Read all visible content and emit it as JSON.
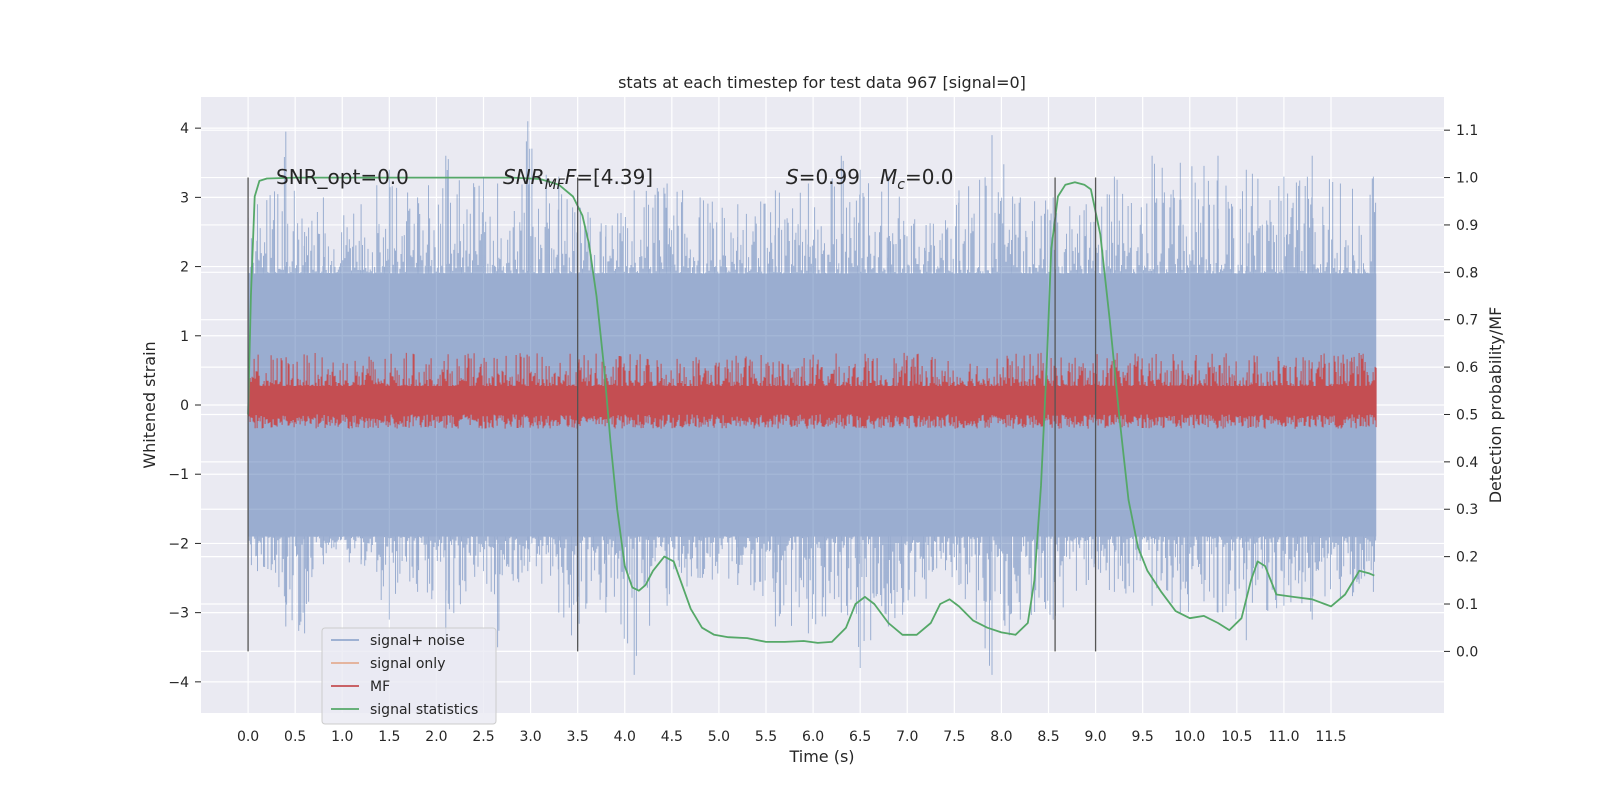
{
  "chart_data": {
    "type": "line",
    "title": "stats at each timestep for test data 967 [signal=0]",
    "xlabel": "Time (s)",
    "ylabel_left": "Whitened strain",
    "ylabel_right": "Detection probability/MF",
    "xlim": [
      -0.5,
      12.7
    ],
    "ylim_left": [
      -4.45,
      4.45
    ],
    "ylim_right": [
      -0.13,
      1.17
    ],
    "x_ticks": [
      "0.0",
      "0.5",
      "1.0",
      "1.5",
      "2.0",
      "2.5",
      "3.0",
      "3.5",
      "4.0",
      "4.5",
      "5.0",
      "5.5",
      "6.0",
      "6.5",
      "7.0",
      "7.5",
      "8.0",
      "8.5",
      "9.0",
      "9.5",
      "10.0",
      "10.5",
      "11.0",
      "11.5"
    ],
    "y_ticks_left": [
      "−4",
      "−3",
      "−2",
      "−1",
      "0",
      "1",
      "2",
      "3",
      "4"
    ],
    "y_ticks_right": [
      "0.0",
      "0.1",
      "0.2",
      "0.3",
      "0.4",
      "0.5",
      "0.6",
      "0.7",
      "0.8",
      "0.9",
      "1.0",
      "1.1"
    ],
    "grid": true,
    "legend_position": "lower-left",
    "annotations": {
      "snr_opt": "SNR_opt=0.0",
      "snr_mf_prefix": "SNR",
      "snr_mf_sub": "MF",
      "snr_mf_suffix": "=[4.39]",
      "s_prefix": "S",
      "s_value": "=0.99",
      "mc_prefix": "M",
      "mc_sub": "c",
      "mc_value": "=0.0"
    },
    "vertical_lines_x": [
      0.0,
      3.5,
      8.57,
      9.0
    ],
    "series": [
      {
        "name": "signal+ noise",
        "color": "#4c72b0",
        "axis": "left",
        "style": "dense noise band",
        "x_range": [
          0.0,
          11.98
        ],
        "dense_range": [
          -1.9,
          1.9
        ],
        "peak_envelope": [
          [
            0.1,
            2.9,
            -2.4
          ],
          [
            0.4,
            3.95,
            -3.2
          ],
          [
            0.6,
            2.5,
            -3.3
          ],
          [
            0.8,
            3.0,
            -2.3
          ],
          [
            1.2,
            2.9,
            -2.3
          ],
          [
            1.5,
            3.4,
            -3.1
          ],
          [
            1.8,
            3.0,
            -2.7
          ],
          [
            2.1,
            3.6,
            -3.4
          ],
          [
            2.5,
            3.3,
            -2.4
          ],
          [
            2.65,
            3.2,
            -3.5
          ],
          [
            2.97,
            4.1,
            -2.4
          ],
          [
            3.3,
            3.3,
            -3.0
          ],
          [
            3.5,
            2.9,
            -3.5
          ],
          [
            3.8,
            2.6,
            -3.0
          ],
          [
            4.1,
            3.1,
            -3.9
          ],
          [
            4.45,
            3.2,
            -2.9
          ],
          [
            4.8,
            3.0,
            -2.5
          ],
          [
            5.2,
            2.9,
            -2.6
          ],
          [
            5.6,
            3.1,
            -3.2
          ],
          [
            5.95,
            3.2,
            -3.3
          ],
          [
            6.3,
            3.6,
            -3.0
          ],
          [
            6.5,
            3.4,
            -3.8
          ],
          [
            6.8,
            3.3,
            -3.2
          ],
          [
            7.2,
            2.6,
            -2.8
          ],
          [
            7.55,
            3.1,
            -2.6
          ],
          [
            7.9,
            3.9,
            -3.9
          ],
          [
            8.2,
            3.0,
            -3.1
          ],
          [
            8.55,
            3.0,
            -3.1
          ],
          [
            8.9,
            2.9,
            -2.6
          ],
          [
            9.2,
            3.3,
            -2.7
          ],
          [
            9.6,
            3.6,
            -2.9
          ],
          [
            9.9,
            3.5,
            -3.0
          ],
          [
            10.3,
            3.6,
            -3.0
          ],
          [
            10.6,
            3.4,
            -3.4
          ],
          [
            11.0,
            3.3,
            -2.9
          ],
          [
            11.3,
            3.6,
            -3.1
          ],
          [
            11.6,
            3.2,
            -2.8
          ],
          [
            11.95,
            3.3,
            -2.7
          ]
        ]
      },
      {
        "name": "signal only",
        "color": "#dd8452",
        "axis": "left",
        "values_note": "zero (no signal)"
      },
      {
        "name": "MF",
        "color": "#c44e52",
        "axis": "right",
        "style": "dense band",
        "x_range": [
          0.0,
          11.98
        ],
        "dense_range": [
          0.5,
          0.56
        ],
        "max_range": [
          0.47,
          0.63
        ],
        "spikes": [
          [
            1.68,
            0.63
          ],
          [
            2.93,
            0.62
          ],
          [
            5.52,
            0.61
          ],
          [
            7.07,
            0.62
          ],
          [
            8.42,
            0.63
          ],
          [
            9.6,
            0.62
          ],
          [
            11.72,
            0.62
          ]
        ]
      },
      {
        "name": "signal statistics",
        "color": "#55a868",
        "axis": "right",
        "points": [
          [
            0.0,
            0.5
          ],
          [
            0.03,
            0.75
          ],
          [
            0.07,
            0.96
          ],
          [
            0.12,
            0.993
          ],
          [
            0.2,
            0.998
          ],
          [
            0.5,
            1.0
          ],
          [
            1.0,
            1.0
          ],
          [
            2.0,
            1.0
          ],
          [
            2.8,
            1.0
          ],
          [
            3.1,
            0.997
          ],
          [
            3.3,
            0.985
          ],
          [
            3.45,
            0.96
          ],
          [
            3.55,
            0.92
          ],
          [
            3.62,
            0.86
          ],
          [
            3.7,
            0.75
          ],
          [
            3.78,
            0.6
          ],
          [
            3.85,
            0.44
          ],
          [
            3.92,
            0.3
          ],
          [
            4.0,
            0.18
          ],
          [
            4.08,
            0.135
          ],
          [
            4.15,
            0.128
          ],
          [
            4.22,
            0.14
          ],
          [
            4.3,
            0.17
          ],
          [
            4.42,
            0.2
          ],
          [
            4.52,
            0.19
          ],
          [
            4.6,
            0.145
          ],
          [
            4.7,
            0.09
          ],
          [
            4.82,
            0.05
          ],
          [
            4.95,
            0.035
          ],
          [
            5.1,
            0.03
          ],
          [
            5.3,
            0.028
          ],
          [
            5.5,
            0.02
          ],
          [
            5.7,
            0.02
          ],
          [
            5.9,
            0.022
          ],
          [
            6.05,
            0.018
          ],
          [
            6.2,
            0.02
          ],
          [
            6.35,
            0.05
          ],
          [
            6.45,
            0.1
          ],
          [
            6.55,
            0.115
          ],
          [
            6.65,
            0.1
          ],
          [
            6.8,
            0.06
          ],
          [
            6.95,
            0.035
          ],
          [
            7.1,
            0.035
          ],
          [
            7.25,
            0.06
          ],
          [
            7.35,
            0.1
          ],
          [
            7.45,
            0.11
          ],
          [
            7.55,
            0.095
          ],
          [
            7.7,
            0.065
          ],
          [
            7.85,
            0.05
          ],
          [
            8.0,
            0.04
          ],
          [
            8.15,
            0.035
          ],
          [
            8.28,
            0.06
          ],
          [
            8.35,
            0.15
          ],
          [
            8.42,
            0.35
          ],
          [
            8.48,
            0.6
          ],
          [
            8.53,
            0.85
          ],
          [
            8.6,
            0.96
          ],
          [
            8.68,
            0.985
          ],
          [
            8.78,
            0.99
          ],
          [
            8.88,
            0.985
          ],
          [
            8.95,
            0.975
          ],
          [
            9.05,
            0.88
          ],
          [
            9.15,
            0.7
          ],
          [
            9.25,
            0.5
          ],
          [
            9.35,
            0.32
          ],
          [
            9.45,
            0.22
          ],
          [
            9.55,
            0.17
          ],
          [
            9.7,
            0.125
          ],
          [
            9.85,
            0.085
          ],
          [
            10.0,
            0.07
          ],
          [
            10.15,
            0.075
          ],
          [
            10.3,
            0.06
          ],
          [
            10.42,
            0.045
          ],
          [
            10.55,
            0.07
          ],
          [
            10.65,
            0.15
          ],
          [
            10.72,
            0.19
          ],
          [
            10.8,
            0.18
          ],
          [
            10.92,
            0.12
          ],
          [
            11.1,
            0.115
          ],
          [
            11.3,
            0.11
          ],
          [
            11.5,
            0.095
          ],
          [
            11.65,
            0.12
          ],
          [
            11.8,
            0.17
          ],
          [
            11.9,
            0.165
          ],
          [
            11.96,
            0.16
          ]
        ]
      }
    ]
  }
}
